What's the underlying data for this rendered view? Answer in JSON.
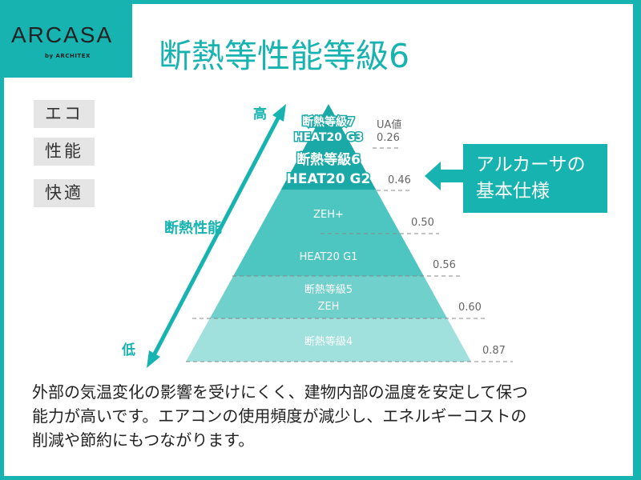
{
  "logo": {
    "brand": "ARCASA",
    "sub": "by ARCHITEX"
  },
  "title": "断熱等性能等級6",
  "tags": [
    "エコ",
    "性能",
    "快適"
  ],
  "axis": {
    "high": "高",
    "low": "低",
    "label": "断熱性能"
  },
  "ua_header": "UA値",
  "tiers": [
    {
      "line1": "断熱等級7",
      "line2": "HEAT20 G3",
      "ua": "0.26"
    },
    {
      "line1": "断熱等級6",
      "line2": "HEAT20 G2",
      "ua": "0.46"
    },
    {
      "line1": "ZEH+",
      "line2": "",
      "ua": "0.50"
    },
    {
      "line1": "HEAT20 G1",
      "line2": "",
      "ua": "0.56"
    },
    {
      "line1": "断熱等級5",
      "line2": "ZEH",
      "ua": "0.60"
    },
    {
      "line1": "断熱等級4",
      "line2": "",
      "ua": "0.87"
    }
  ],
  "callout": {
    "line1": "アルカーサの",
    "line2": "基本仕様"
  },
  "description": [
    "外部の気温変化の影響を受けにくく、建物内部の温度を安定して保つ",
    "能力が高いです。エアコンの使用頻度が減少し、エネルギーコストの",
    "削減や節約にもつながります。"
  ],
  "colors": {
    "accent": "#17b3b0",
    "dark_tier": "#1aa9a6",
    "mid_tier": "#4dc5c1",
    "light_tier": "#70d0cc",
    "lightest_tier": "#a0e1dd"
  }
}
